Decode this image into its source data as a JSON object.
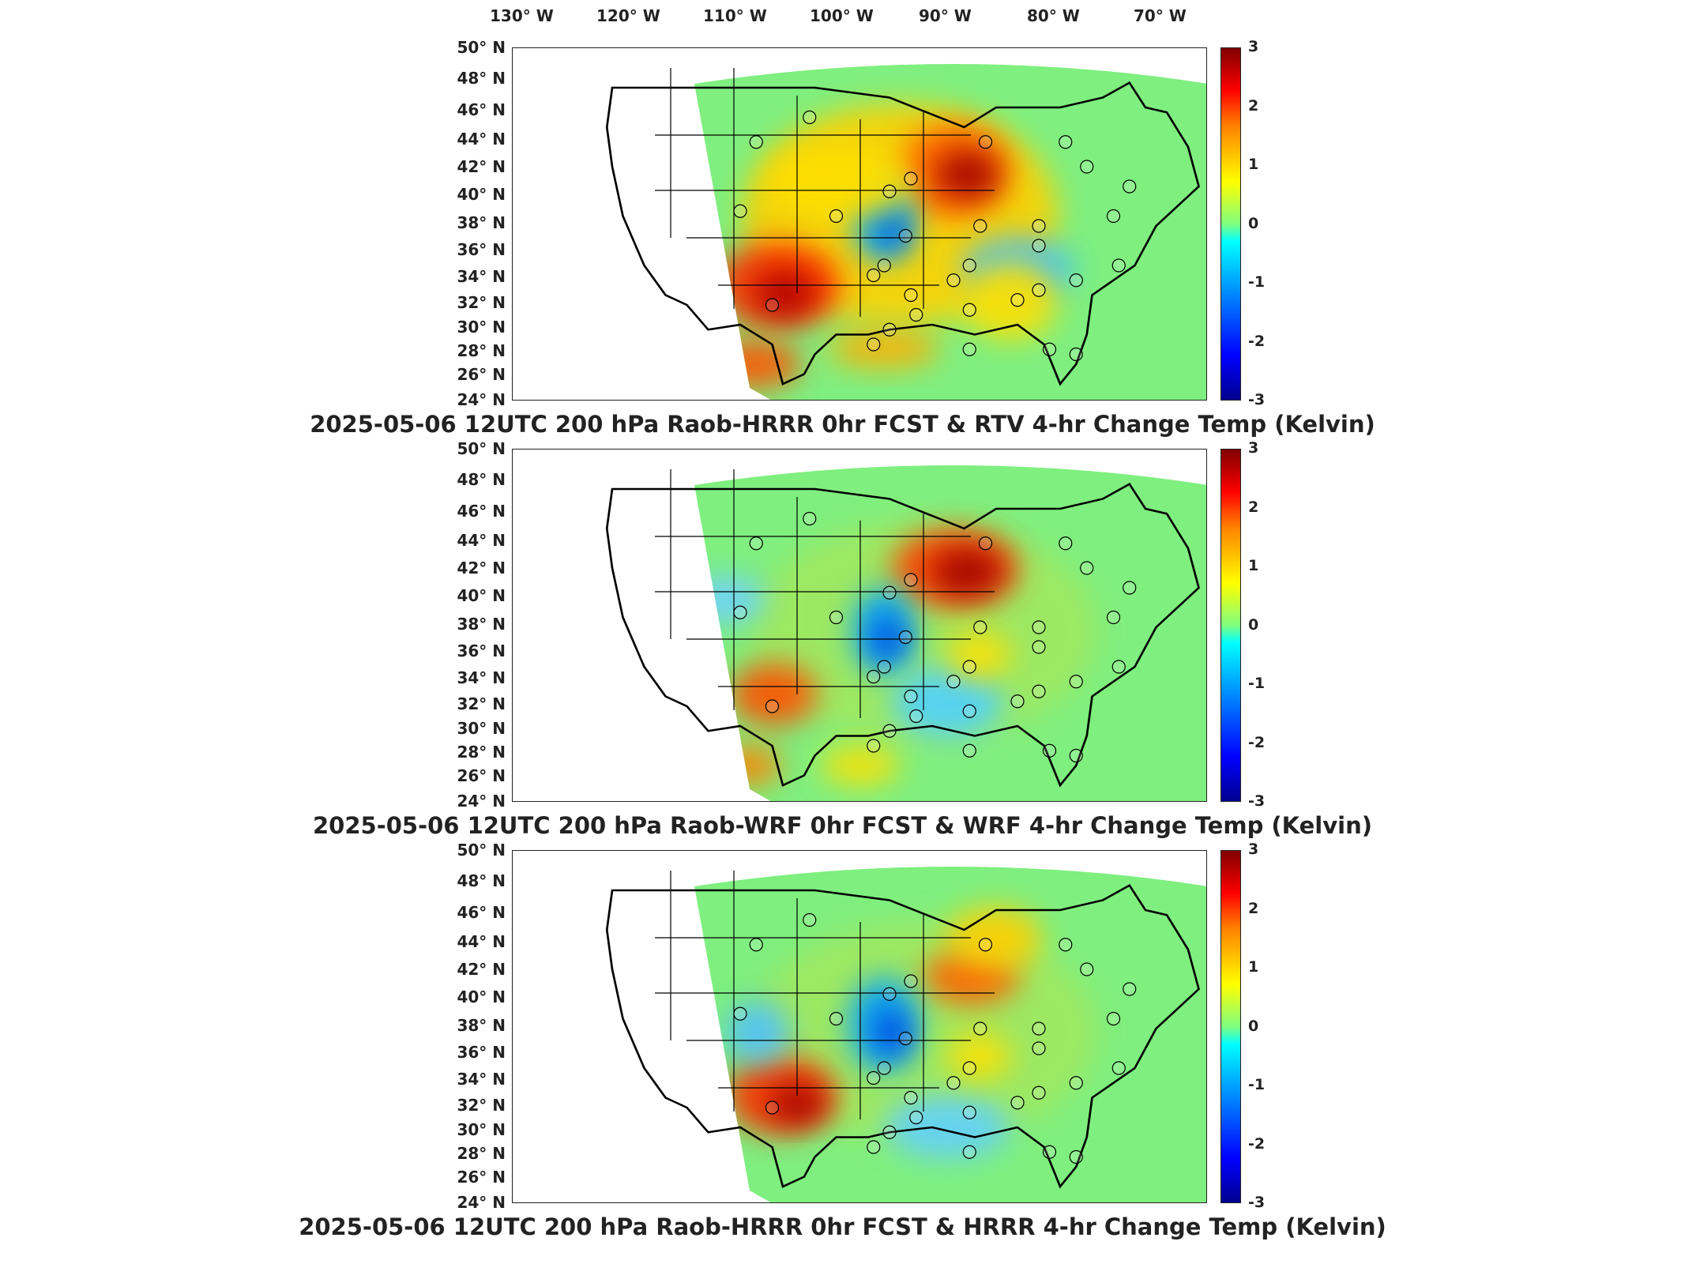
{
  "longitude_labels": [
    "130° W",
    "120° W",
    "110° W",
    "100° W",
    "90° W",
    "80° W",
    "70° W"
  ],
  "latitude_labels": [
    "50° N",
    "48° N",
    "46° N",
    "44° N",
    "42° N",
    "40° N",
    "38° N",
    "36° N",
    "34° N",
    "32° N",
    "30° N",
    "28° N",
    "26° N",
    "24° N"
  ],
  "colorbar": {
    "ticks": [
      "3",
      "2",
      "1",
      "0",
      "-1",
      "-2",
      "-3"
    ],
    "min": -3,
    "max": 3,
    "colormap": "jet"
  },
  "panels": [
    {
      "title": "2025-05-06 12UTC 200 hPa Raob-HRRR 0hr FCST & RTV 4-hr Change Temp (Kelvin)"
    },
    {
      "title": "2025-05-06 12UTC 200 hPa Raob-WRF 0hr FCST & WRF 4-hr Change Temp (Kelvin)"
    },
    {
      "title": "2025-05-06 12UTC 200 hPa Raob-HRRR 0hr FCST & HRRR 4-hr Change Temp (Kelvin)"
    }
  ],
  "colors": {
    "domain_fill": "#7fef7f",
    "warm": "#ff3000",
    "hot": "#a00000",
    "cool": "#00b0ff",
    "cold": "#0030d0"
  }
}
